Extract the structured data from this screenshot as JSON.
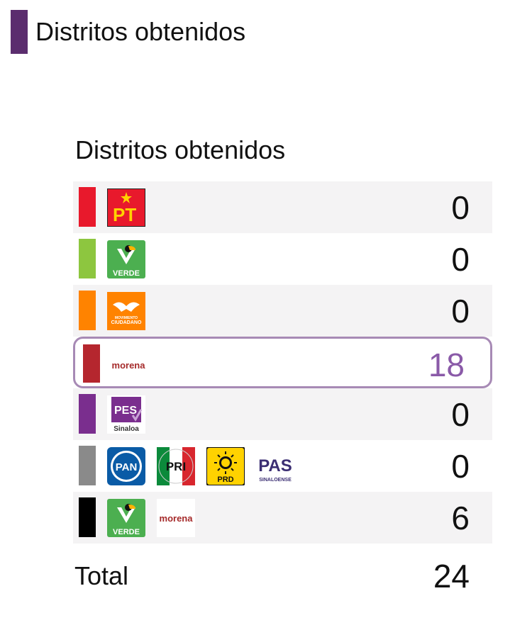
{
  "header": {
    "title": "Distritos obtenidos",
    "accent_color": "#5b2d6e"
  },
  "card": {
    "title": "Distritos obtenidos"
  },
  "rows": [
    {
      "bar_color": "#e8192c",
      "logos": [
        "pt-logo"
      ],
      "logo_labels": [
        "PT"
      ],
      "value": "0",
      "highlighted": false
    },
    {
      "bar_color": "#8dc63f",
      "logos": [
        "verde-logo"
      ],
      "logo_labels": [
        "VERDE"
      ],
      "value": "0",
      "highlighted": false
    },
    {
      "bar_color": "#ff8300",
      "logos": [
        "movimiento-ciudadano-logo"
      ],
      "logo_labels": [
        "MOVIMIENTO CIUDADANO"
      ],
      "value": "0",
      "highlighted": false
    },
    {
      "bar_color": "#b5262e",
      "logos": [
        "morena-logo"
      ],
      "logo_labels": [
        "morena"
      ],
      "value": "18",
      "highlighted": true
    },
    {
      "bar_color": "#7a2e8e",
      "logos": [
        "pes-sinaloa-logo"
      ],
      "logo_labels": [
        "PES",
        "Sinaloa"
      ],
      "value": "0",
      "highlighted": false
    },
    {
      "bar_color": "#8a8a8a",
      "logos": [
        "pan-logo",
        "pri-logo",
        "prd-logo",
        "pas-logo"
      ],
      "logo_labels": [
        "PAN",
        "PRI",
        "PRD",
        "PAS",
        "SINALOENSE"
      ],
      "value": "0",
      "highlighted": false
    },
    {
      "bar_color": "#000000",
      "logos": [
        "verde-logo",
        "morena-logo"
      ],
      "logo_labels": [
        "VERDE",
        "morena"
      ],
      "value": "6",
      "highlighted": false
    }
  ],
  "total": {
    "label": "Total",
    "value": "24"
  }
}
